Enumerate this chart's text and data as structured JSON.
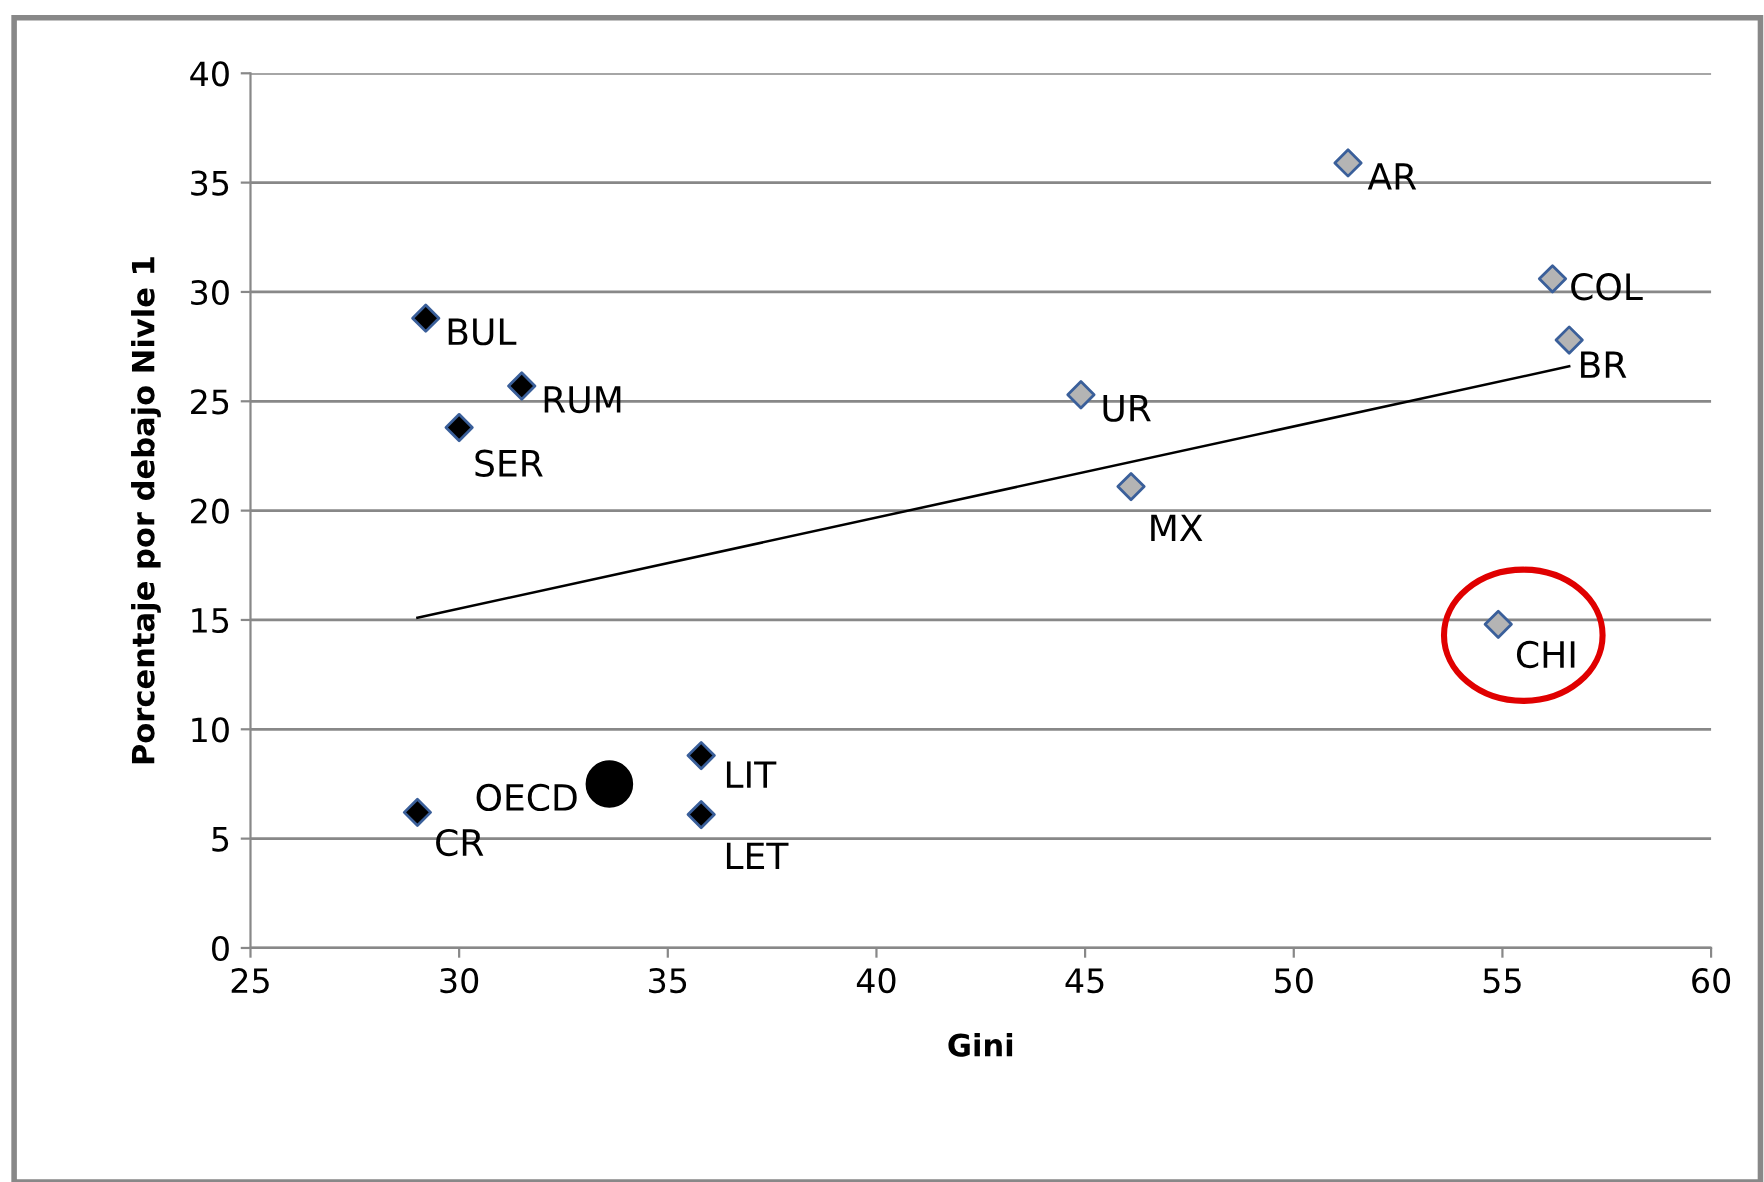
{
  "chart_data": {
    "type": "scatter",
    "xlabel": "Gini",
    "ylabel": "Porcentaje por debajo Nivle 1",
    "xlim": [
      25,
      60
    ],
    "xticks": [
      25,
      30,
      35,
      40,
      45,
      50,
      55,
      60
    ],
    "ylim": [
      0,
      40
    ],
    "yticks": [
      0,
      5,
      10,
      15,
      20,
      25,
      30,
      35,
      40
    ],
    "grid": "y",
    "legend": false,
    "marker": "diamond",
    "series": [
      {
        "color": "#000000",
        "x": [
          29.2,
          31.5,
          30.0,
          35.8,
          35.8,
          29.0
        ],
        "values": [
          28.8,
          25.7,
          23.8,
          8.8,
          6.1,
          6.2
        ]
      },
      {
        "color": "#b4b4b4",
        "x": [
          44.9,
          46.1,
          51.3,
          56.2,
          56.6,
          54.9
        ],
        "values": [
          25.3,
          21.1,
          35.9,
          30.6,
          27.8,
          14.8
        ]
      },
      {
        "color": "#000000",
        "marker": "circle",
        "x": [
          33.6
        ],
        "values": [
          7.5
        ]
      },
      {
        "type": "line",
        "marker": "none",
        "color": "#000000",
        "x": [
          29.0,
          56.6
        ],
        "values": [
          15.1,
          26.6
        ]
      }
    ],
    "annotations": [
      {
        "text": "BUL",
        "x": 29.2,
        "y": 28.8
      },
      {
        "text": "RUM",
        "x": 31.5,
        "y": 25.7
      },
      {
        "text": "SER",
        "x": 30.0,
        "y": 23.8
      },
      {
        "text": "LIT",
        "x": 35.8,
        "y": 8.8
      },
      {
        "text": "LET",
        "x": 35.8,
        "y": 6.1
      },
      {
        "text": "CR",
        "x": 29.0,
        "y": 6.2
      },
      {
        "text": "UR",
        "x": 44.9,
        "y": 25.3
      },
      {
        "text": "MX",
        "x": 46.1,
        "y": 21.1
      },
      {
        "text": "AR",
        "x": 51.3,
        "y": 35.9
      },
      {
        "text": "COL",
        "x": 56.2,
        "y": 30.6
      },
      {
        "text": "BR",
        "x": 56.6,
        "y": 27.8
      },
      {
        "text": "CHI",
        "x": 54.9,
        "y": 14.8
      },
      {
        "text": "OECD",
        "x": 33.6,
        "y": 7.5
      }
    ]
  }
}
